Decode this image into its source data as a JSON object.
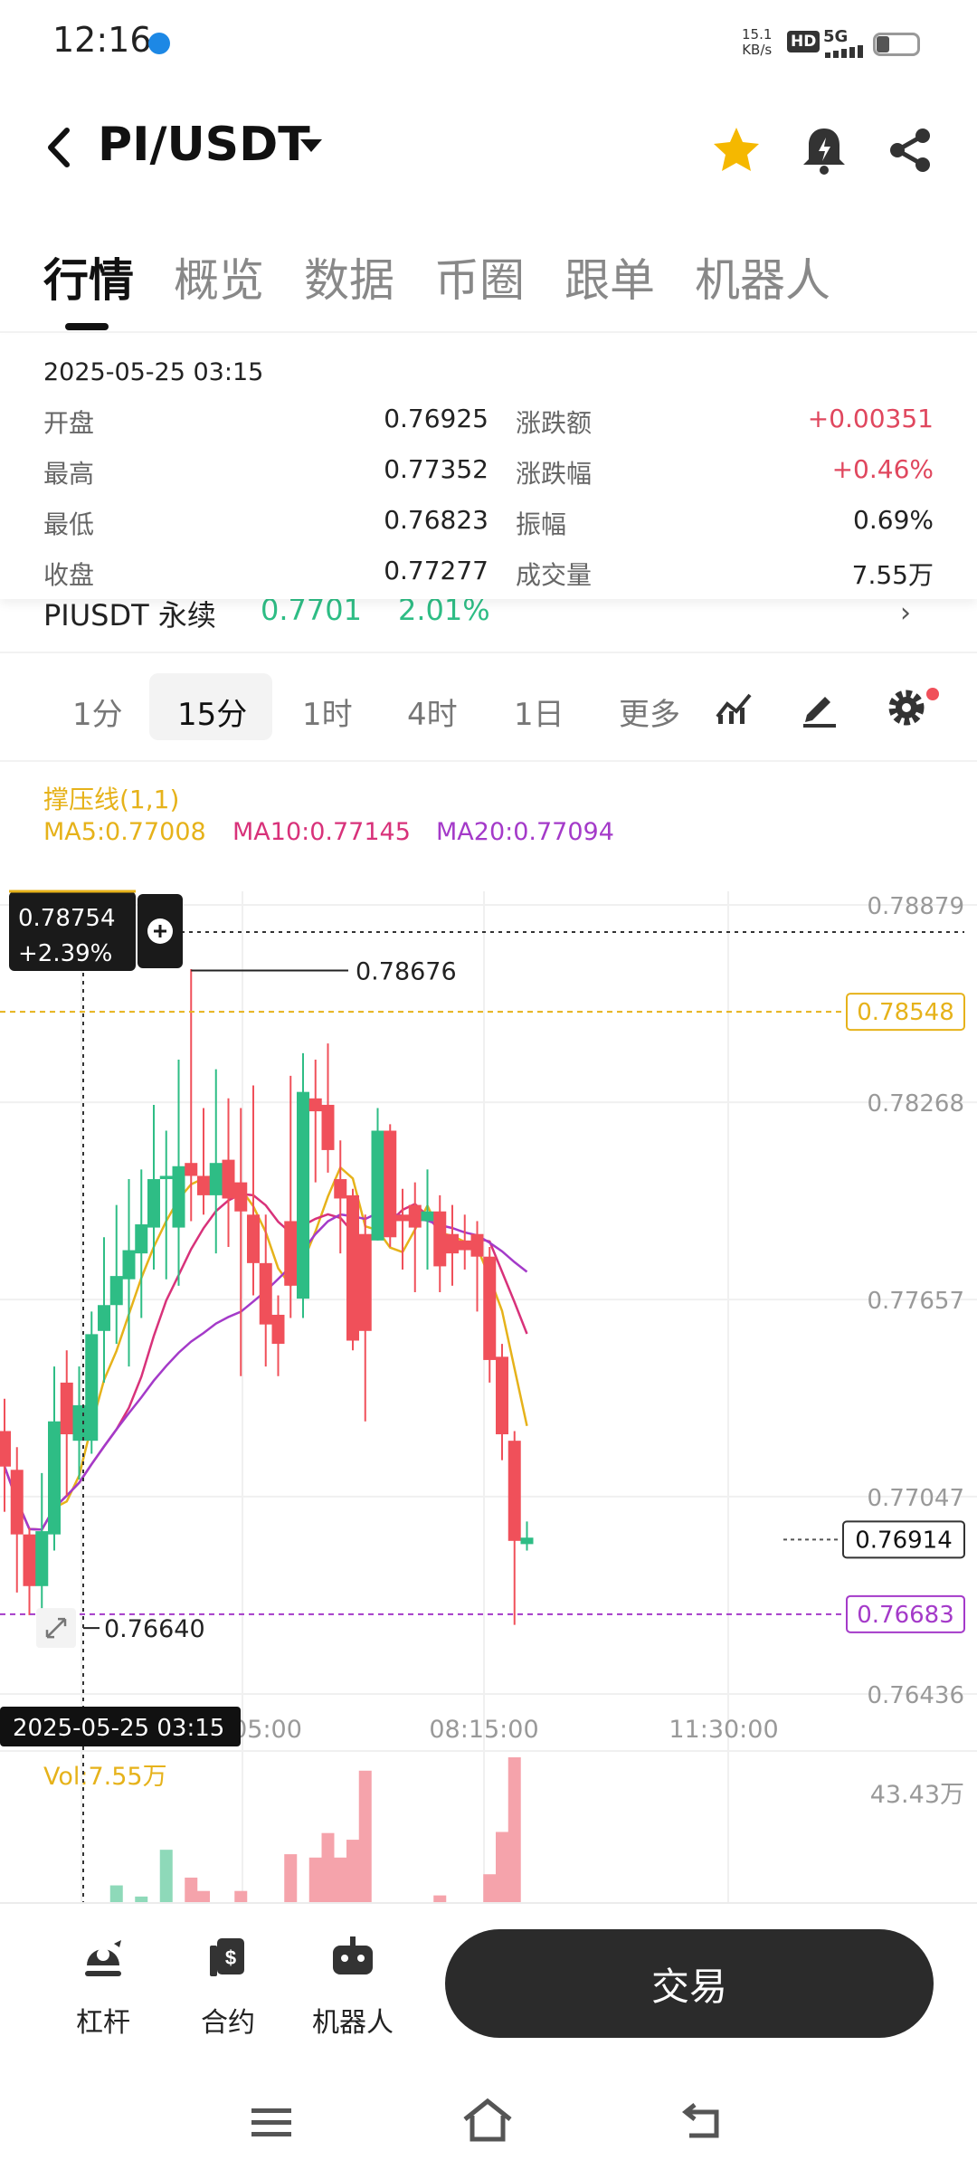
{
  "status": {
    "time": "12:16",
    "net_speed_top": "15.1",
    "net_speed_unit": "KB/s",
    "hd": "HD",
    "net": "5G"
  },
  "header": {
    "pair": "PI/USDT"
  },
  "tabs": [
    "行情",
    "概览",
    "数据",
    "币圈",
    "跟单",
    "机器人"
  ],
  "info": {
    "date": "2025-05-25 03:15",
    "rows": [
      {
        "label": "开盘",
        "value": "0.76925",
        "label2": "涨跌额",
        "value2": "+0.00351"
      },
      {
        "label": "最高",
        "value": "0.77352",
        "label2": "涨跌幅",
        "value2": "+0.46%"
      },
      {
        "label": "最低",
        "value": "0.76823",
        "label2": "振幅",
        "value2": "0.69%"
      },
      {
        "label": "收盘",
        "value": "0.77277",
        "label2": "成交量",
        "value2": "7.55万"
      }
    ]
  },
  "partial_row": {
    "name": "PIUSDT 永续",
    "price": "0.7701",
    "pct": "2.01%"
  },
  "intervals": [
    "1分",
    "15分",
    "1时",
    "4时",
    "1日",
    "更多"
  ],
  "indicators": {
    "support": "撑压线(1,1)",
    "ma5": "MA5:0.77008",
    "ma10": "MA10:0.77145",
    "ma20": "MA20:0.77094"
  },
  "crosshair": {
    "price": "0.78754",
    "pct": "+2.39%",
    "time": "2025-05-25 03:15"
  },
  "chart_data": {
    "type": "candlestick",
    "price_axis": [
      "0.78879",
      "0.78268",
      "0.77657",
      "0.77047",
      "0.76436"
    ],
    "time_axis": [
      "05:00",
      "08:15:00",
      "11:30:00"
    ],
    "high_marker": "0.78676",
    "low_marker": "0.76640",
    "resistance": "0.78548",
    "support": "0.76683",
    "last_price": "0.76914",
    "candles": [
      {
        "o": 0.7725,
        "c": 0.7714,
        "h": 0.7735,
        "l": 0.77
      },
      {
        "o": 0.7713,
        "c": 0.7693,
        "h": 0.772,
        "l": 0.7675
      },
      {
        "o": 0.7693,
        "c": 0.7677,
        "h": 0.7695,
        "l": 0.7668
      },
      {
        "o": 0.7677,
        "c": 0.7694,
        "h": 0.7712,
        "l": 0.767
      },
      {
        "o": 0.7693,
        "c": 0.7728,
        "h": 0.7745,
        "l": 0.7688
      },
      {
        "o": 0.774,
        "c": 0.7724,
        "h": 0.775,
        "l": 0.7705
      },
      {
        "o": 0.7722,
        "c": 0.7733,
        "h": 0.7745,
        "l": 0.771
      },
      {
        "o": 0.7722,
        "c": 0.7755,
        "h": 0.7762,
        "l": 0.7718
      },
      {
        "o": 0.7756,
        "c": 0.7764,
        "h": 0.7785,
        "l": 0.774
      },
      {
        "o": 0.7764,
        "c": 0.7773,
        "h": 0.7795,
        "l": 0.7752
      },
      {
        "o": 0.7772,
        "c": 0.7781,
        "h": 0.7803,
        "l": 0.7745
      },
      {
        "o": 0.778,
        "c": 0.7789,
        "h": 0.7806,
        "l": 0.776
      },
      {
        "o": 0.7788,
        "c": 0.7803,
        "h": 0.7826,
        "l": 0.7775
      },
      {
        "o": 0.7803,
        "c": 0.7804,
        "h": 0.7818,
        "l": 0.7772
      },
      {
        "o": 0.7788,
        "c": 0.7807,
        "h": 0.784,
        "l": 0.777
      },
      {
        "o": 0.7808,
        "c": 0.7804,
        "h": 0.7868,
        "l": 0.779
      },
      {
        "o": 0.7804,
        "c": 0.7798,
        "h": 0.7825,
        "l": 0.7792
      },
      {
        "o": 0.7798,
        "c": 0.7808,
        "h": 0.7837,
        "l": 0.778
      },
      {
        "o": 0.7809,
        "c": 0.7797,
        "h": 0.7828,
        "l": 0.7782
      },
      {
        "o": 0.7802,
        "c": 0.7793,
        "h": 0.7825,
        "l": 0.7742
      },
      {
        "o": 0.7792,
        "c": 0.7777,
        "h": 0.7832,
        "l": 0.7767
      },
      {
        "o": 0.7777,
        "c": 0.7758,
        "h": 0.7792,
        "l": 0.7745
      },
      {
        "o": 0.7761,
        "c": 0.7752,
        "h": 0.7767,
        "l": 0.7742
      },
      {
        "o": 0.779,
        "c": 0.777,
        "h": 0.7835,
        "l": 0.776
      },
      {
        "o": 0.7766,
        "c": 0.783,
        "h": 0.7842,
        "l": 0.776
      },
      {
        "o": 0.7828,
        "c": 0.7824,
        "h": 0.784,
        "l": 0.7802
      },
      {
        "o": 0.7826,
        "c": 0.7812,
        "h": 0.7845,
        "l": 0.7805
      },
      {
        "o": 0.7803,
        "c": 0.7797,
        "h": 0.7815,
        "l": 0.778
      },
      {
        "o": 0.7798,
        "c": 0.7753,
        "h": 0.78,
        "l": 0.775
      },
      {
        "o": 0.7786,
        "c": 0.7756,
        "h": 0.7792,
        "l": 0.7728
      },
      {
        "o": 0.7784,
        "c": 0.7818,
        "h": 0.7825,
        "l": 0.7784
      },
      {
        "o": 0.7818,
        "c": 0.7785,
        "h": 0.782,
        "l": 0.7782
      },
      {
        "o": 0.7792,
        "c": 0.779,
        "h": 0.78,
        "l": 0.7775
      },
      {
        "o": 0.7795,
        "c": 0.7788,
        "h": 0.7802,
        "l": 0.7768
      },
      {
        "o": 0.779,
        "c": 0.7793,
        "h": 0.7806,
        "l": 0.7775
      },
      {
        "o": 0.7793,
        "c": 0.7776,
        "h": 0.7798,
        "l": 0.7768
      },
      {
        "o": 0.7786,
        "c": 0.778,
        "h": 0.7795,
        "l": 0.777
      },
      {
        "o": 0.7784,
        "c": 0.7781,
        "h": 0.7792,
        "l": 0.7775
      },
      {
        "o": 0.7786,
        "c": 0.7779,
        "h": 0.779,
        "l": 0.7762
      },
      {
        "o": 0.7779,
        "c": 0.7747,
        "h": 0.7782,
        "l": 0.774
      },
      {
        "o": 0.7748,
        "c": 0.7724,
        "h": 0.7752,
        "l": 0.7716
      },
      {
        "o": 0.7722,
        "c": 0.7691,
        "h": 0.7725,
        "l": 0.7665
      },
      {
        "o": 0.769,
        "c": 0.7692,
        "h": 0.7697,
        "l": 0.7688
      }
    ],
    "volume_label": "Vol:7.55万",
    "volume_axis": "43.43万",
    "volumes": [
      0,
      0,
      0,
      0,
      0,
      0,
      0,
      0,
      0,
      1.5,
      0,
      0.5,
      0,
      4.7,
      0,
      2.2,
      1.0,
      0,
      0,
      1.0,
      0,
      0,
      0,
      4.3,
      0,
      4.0,
      6.2,
      4.0,
      5.6,
      11.8,
      0,
      0,
      0,
      0,
      0,
      0.6,
      0,
      0,
      0,
      2.5,
      6.3,
      13.0,
      0
    ]
  },
  "bottom": {
    "leverage": "杠杆",
    "futures": "合约",
    "bot": "机器人",
    "trade": "交易"
  }
}
